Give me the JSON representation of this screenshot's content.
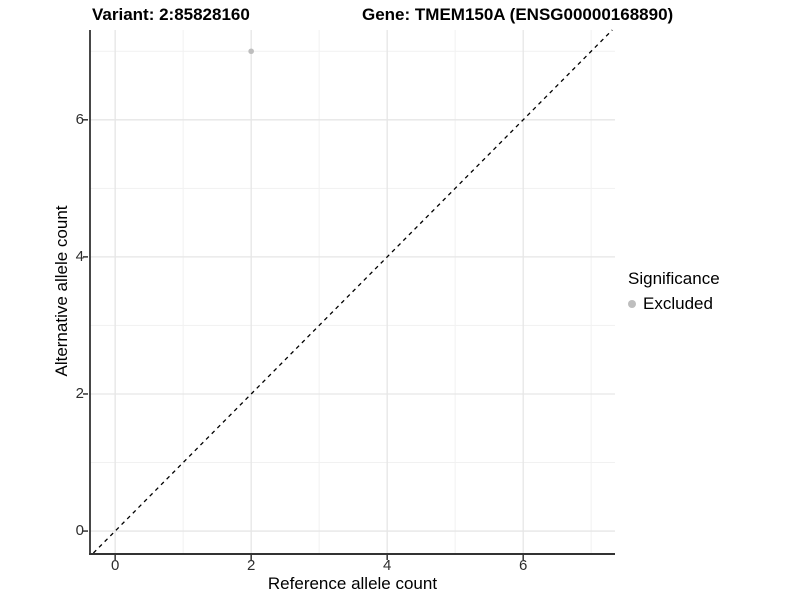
{
  "titles": {
    "variant": "Variant: 2:85828160",
    "gene": "Gene: TMEM150A (ENSG00000168890)"
  },
  "legend": {
    "title": "Significance",
    "items": [
      {
        "label": "Excluded",
        "color": "#bebebe"
      }
    ]
  },
  "colors": {
    "background": "#ffffff",
    "grid_major": "#e6e6e6",
    "grid_minor": "#f1f1f1",
    "axis_line": "#333333",
    "tick_mark": "#333333",
    "reference_line": "#000000",
    "point_excluded": "#bebebe"
  },
  "chart_data": {
    "type": "scatter",
    "title": "Variant: 2:85828160 | Gene: TMEM150A (ENSG00000168890)",
    "xlabel": "Reference allele count",
    "ylabel": "Alternative allele count",
    "xlim": [
      -0.37,
      7.35
    ],
    "ylim": [
      -0.32,
      7.31
    ],
    "x_ticks": [
      0,
      2,
      4,
      6
    ],
    "y_ticks": [
      0,
      2,
      4,
      6
    ],
    "x_minor_gridlines": [
      1,
      3,
      5,
      7
    ],
    "y_minor_gridlines": [
      1,
      3,
      5,
      7
    ],
    "grid": "major+minor",
    "legend_position": "right",
    "legend_title": "Significance",
    "series": [
      {
        "name": "Excluded",
        "color": "#bebebe",
        "marker": "circle",
        "points": [
          {
            "x": 2,
            "y": 7
          }
        ]
      }
    ],
    "reference_line": {
      "kind": "identity",
      "slope": 1,
      "intercept": 0,
      "style": "dashed",
      "color": "#000000"
    }
  }
}
